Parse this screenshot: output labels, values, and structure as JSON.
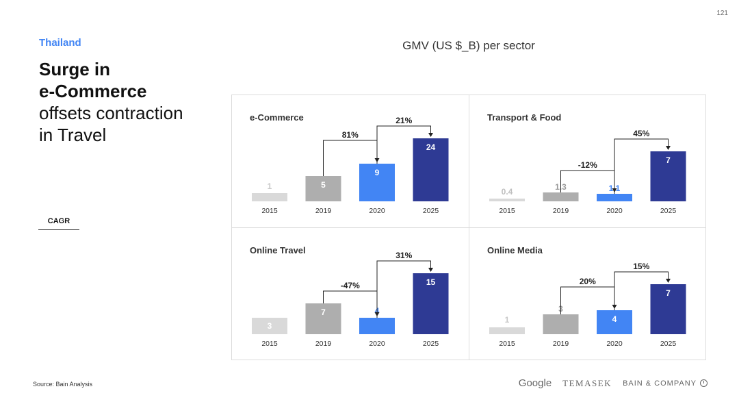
{
  "page_number": "121",
  "country": "Thailand",
  "headline": {
    "bold": [
      "Surge in",
      "e-Commerce"
    ],
    "light": [
      "offsets contraction",
      "in Travel"
    ]
  },
  "cagr_label": "CAGR",
  "chart_title": "GMV (US $_B) per sector",
  "source": "Source: Bain Analysis",
  "logos": {
    "google": "Google",
    "temasek": "TEMASEK",
    "bain": "BAIN & COMPANY"
  },
  "colors": {
    "y2015": "#D9D9D9",
    "y2019": "#AEAEAE",
    "y2020": "#4285F4",
    "y2025": "#2E3A94",
    "accent": "#4285F4"
  },
  "chart_data": [
    {
      "type": "bar",
      "title": "e-Commerce",
      "categories": [
        "2015",
        "2019",
        "2020",
        "2025"
      ],
      "values": [
        1,
        5,
        9,
        24
      ],
      "value_labels": [
        "1",
        "5",
        "9",
        "24"
      ],
      "cagr": [
        {
          "from": "2019",
          "to": "2020",
          "label": "81%"
        },
        {
          "from": "2020",
          "to": "2025",
          "label": "21%"
        }
      ]
    },
    {
      "type": "bar",
      "title": "Transport & Food",
      "categories": [
        "2015",
        "2019",
        "2020",
        "2025"
      ],
      "values": [
        0.4,
        1.3,
        1.1,
        7
      ],
      "value_labels": [
        "0.4",
        "1.3",
        "1.1",
        "7"
      ],
      "cagr": [
        {
          "from": "2019",
          "to": "2020",
          "label": "-12%"
        },
        {
          "from": "2020",
          "to": "2025",
          "label": "45%"
        }
      ]
    },
    {
      "type": "bar",
      "title": "Online Travel",
      "categories": [
        "2015",
        "2019",
        "2020",
        "2025"
      ],
      "values": [
        3,
        7,
        4,
        15
      ],
      "value_labels": [
        "3",
        "7",
        "4",
        "15"
      ],
      "cagr": [
        {
          "from": "2019",
          "to": "2020",
          "label": "-47%"
        },
        {
          "from": "2020",
          "to": "2025",
          "label": "31%"
        }
      ]
    },
    {
      "type": "bar",
      "title": "Online Media",
      "categories": [
        "2015",
        "2019",
        "2020",
        "2025"
      ],
      "values": [
        1,
        3,
        4,
        7
      ],
      "value_labels": [
        "1",
        "3",
        "4",
        "7"
      ],
      "cagr": [
        {
          "from": "2019",
          "to": "2020",
          "label": "20%"
        },
        {
          "from": "2020",
          "to": "2025",
          "label": "15%"
        }
      ]
    }
  ]
}
